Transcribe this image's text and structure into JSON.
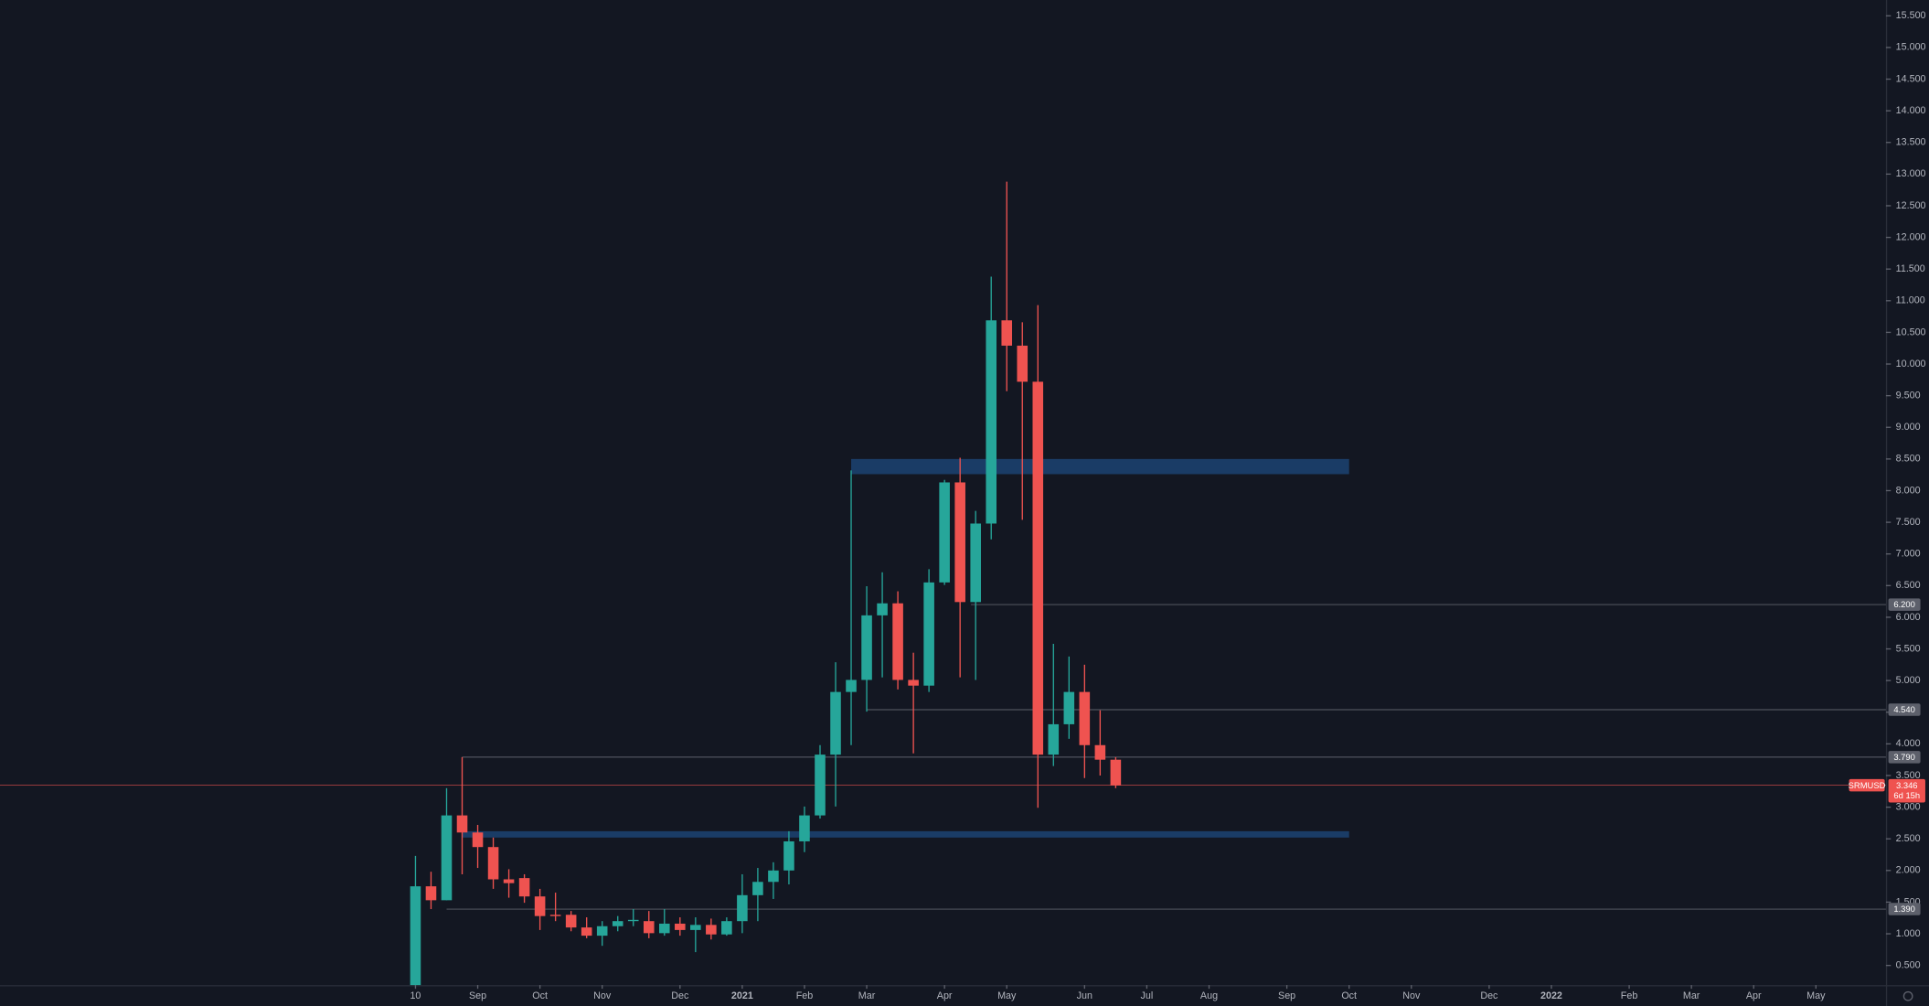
{
  "chart_data": {
    "type": "candlestick",
    "symbol": "SRMUSD",
    "countdown": "6d 15h",
    "last_price": {
      "value": 3.346,
      "label": "3.346"
    },
    "up_color": "#26a69a",
    "down_color": "#ef5350",
    "x": [
      0,
      1,
      2,
      3,
      4,
      5,
      6,
      7,
      8,
      9,
      10,
      11,
      12,
      13,
      14,
      15,
      16,
      17,
      18,
      19,
      20,
      21,
      22,
      23,
      24,
      25,
      26,
      27,
      28,
      29,
      30,
      31,
      32,
      33,
      34,
      35,
      36,
      37,
      38,
      39,
      40,
      41,
      42,
      43,
      44,
      45
    ],
    "open": [
      0.19,
      1.75,
      1.53,
      2.87,
      2.6,
      2.37,
      1.86,
      1.88,
      1.59,
      1.3,
      1.3,
      1.1,
      0.97,
      1.12,
      1.2,
      1.2,
      1.01,
      1.16,
      1.06,
      1.14,
      0.99,
      1.2,
      1.61,
      1.82,
      2.0,
      2.46,
      2.87,
      3.83,
      4.82,
      5.01,
      6.03,
      6.22,
      5.01,
      4.92,
      6.55,
      8.13,
      6.24,
      7.48,
      10.69,
      10.29,
      9.72,
      3.83,
      4.31,
      4.82,
      3.98,
      3.75
    ],
    "high": [
      2.23,
      1.98,
      3.3,
      3.79,
      2.72,
      2.52,
      2.02,
      1.94,
      1.71,
      1.65,
      1.36,
      1.26,
      1.2,
      1.28,
      1.39,
      1.36,
      1.39,
      1.26,
      1.26,
      1.24,
      1.26,
      1.94,
      2.04,
      2.13,
      2.62,
      3.01,
      3.98,
      5.29,
      8.32,
      6.49,
      6.71,
      6.41,
      5.44,
      6.76,
      8.17,
      8.52,
      7.68,
      11.38,
      12.88,
      10.66,
      10.93,
      5.58,
      5.38,
      5.25,
      4.53,
      3.79
    ],
    "low": [
      0.19,
      1.39,
      1.53,
      1.94,
      2.04,
      1.71,
      1.57,
      1.49,
      1.06,
      1.2,
      1.04,
      0.93,
      0.81,
      1.04,
      1.12,
      0.93,
      0.97,
      0.97,
      0.71,
      0.91,
      0.97,
      1.01,
      1.2,
      1.55,
      1.78,
      2.29,
      2.82,
      3.01,
      3.98,
      4.51,
      5.05,
      4.86,
      3.85,
      4.82,
      6.51,
      5.05,
      5.01,
      7.23,
      9.57,
      7.54,
      2.99,
      3.65,
      4.08,
      3.46,
      3.5,
      3.3
    ],
    "close": [
      1.75,
      1.53,
      2.87,
      2.6,
      2.37,
      1.86,
      1.8,
      1.59,
      1.28,
      1.28,
      1.1,
      0.97,
      1.12,
      1.2,
      1.22,
      1.01,
      1.16,
      1.06,
      1.14,
      0.99,
      1.2,
      1.61,
      1.82,
      2.0,
      2.46,
      2.87,
      3.83,
      4.82,
      5.01,
      6.03,
      6.22,
      5.01,
      4.92,
      6.55,
      8.13,
      6.24,
      7.48,
      10.69,
      10.29,
      9.72,
      3.83,
      4.31,
      4.82,
      3.98,
      3.75,
      3.346
    ],
    "xlim": [
      -26.7,
      94.5
    ],
    "xticks": [
      {
        "value": 0,
        "label": "10"
      },
      {
        "value": 4,
        "label": "Sep"
      },
      {
        "value": 8,
        "label": "Oct"
      },
      {
        "value": 12,
        "label": "Nov"
      },
      {
        "value": 17,
        "label": "Dec"
      },
      {
        "value": 21,
        "label": "2021"
      },
      {
        "value": 25,
        "label": "Feb"
      },
      {
        "value": 29,
        "label": "Mar"
      },
      {
        "value": 34,
        "label": "Apr"
      },
      {
        "value": 38,
        "label": "May"
      },
      {
        "value": 43,
        "label": "Jun"
      },
      {
        "value": 47,
        "label": "Jul"
      },
      {
        "value": 51,
        "label": "Aug"
      },
      {
        "value": 56,
        "label": "Sep"
      },
      {
        "value": 60,
        "label": "Oct"
      },
      {
        "value": 64,
        "label": "Nov"
      },
      {
        "value": 69,
        "label": "Dec"
      },
      {
        "value": 73,
        "label": "2022"
      },
      {
        "value": 78,
        "label": "Feb"
      },
      {
        "value": 82,
        "label": "Mar"
      },
      {
        "value": 86,
        "label": "Apr"
      },
      {
        "value": 90,
        "label": "May"
      }
    ],
    "ylim": [
      0.19,
      15.75
    ],
    "yticks": [
      {
        "value": 0.5,
        "label": "0.500"
      },
      {
        "value": 1,
        "label": "1.000"
      },
      {
        "value": 1.5,
        "label": "1.500"
      },
      {
        "value": 2,
        "label": "2.000"
      },
      {
        "value": 2.5,
        "label": "2.500"
      },
      {
        "value": 3,
        "label": "3.000"
      },
      {
        "value": 3.5,
        "label": "3.500"
      },
      {
        "value": 4,
        "label": "4.000"
      },
      {
        "value": 4.5,
        "label": "4.500"
      },
      {
        "value": 5,
        "label": "5.000"
      },
      {
        "value": 5.5,
        "label": "5.500"
      },
      {
        "value": 6,
        "label": "6.000"
      },
      {
        "value": 6.5,
        "label": "6.500"
      },
      {
        "value": 7,
        "label": "7.000"
      },
      {
        "value": 7.5,
        "label": "7.500"
      },
      {
        "value": 8,
        "label": "8.000"
      },
      {
        "value": 8.5,
        "label": "8.500"
      },
      {
        "value": 9,
        "label": "9.000"
      },
      {
        "value": 9.5,
        "label": "9.500"
      },
      {
        "value": 10,
        "label": "10.000"
      },
      {
        "value": 10.5,
        "label": "10.500"
      },
      {
        "value": 11,
        "label": "11.000"
      },
      {
        "value": 11.5,
        "label": "11.500"
      },
      {
        "value": 12,
        "label": "12.000"
      },
      {
        "value": 12.5,
        "label": "12.500"
      },
      {
        "value": 13,
        "label": "13.000"
      },
      {
        "value": 13.5,
        "label": "13.500"
      },
      {
        "value": 14,
        "label": "14.000"
      },
      {
        "value": 14.5,
        "label": "14.500"
      },
      {
        "value": 15,
        "label": "15.000"
      },
      {
        "value": 15.5,
        "label": "15.500"
      }
    ],
    "levels": [
      {
        "value": 6.2,
        "label": "6.200",
        "x_start": 35.7
      },
      {
        "value": 4.54,
        "label": "4.540",
        "x_start": 29
      },
      {
        "value": 3.79,
        "label": "3.790",
        "x_start": 3
      },
      {
        "value": 1.39,
        "label": "1.390",
        "x_start": 2
      }
    ],
    "zones": [
      {
        "low": 8.26,
        "high": 8.5,
        "x_start": 28,
        "x_end": 60
      },
      {
        "low": 2.52,
        "high": 2.62,
        "x_start": 3,
        "x_end": 60
      }
    ]
  }
}
